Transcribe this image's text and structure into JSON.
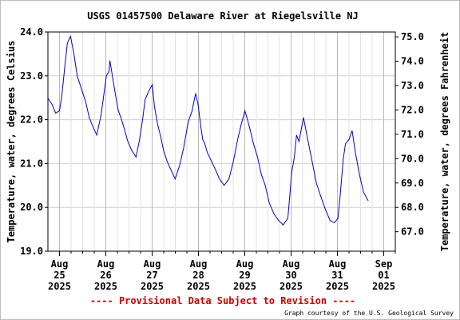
{
  "chart_data": {
    "type": "line",
    "title": "USGS 01457500 Delaware River at Riegelsville NJ",
    "ylabel_left": "Temperature, water, degrees Celsius",
    "ylabel_right": "Temperature, water, degrees Fahrenheit",
    "ylim": [
      19.0,
      24.0
    ],
    "xlim": [
      "2025-08-24 18:00",
      "2025-09-01 06:00"
    ],
    "y_ticks_left": [
      "24.0",
      "23.0",
      "22.0",
      "21.0",
      "20.0",
      "19.0"
    ],
    "y_ticks_right": [
      "75.0",
      "74.0",
      "73.0",
      "72.0",
      "71.0",
      "70.0",
      "69.0",
      "68.0",
      "67.0"
    ],
    "x_ticks": [
      {
        "month": "Aug",
        "day": "25",
        "year": "2025",
        "t": 0
      },
      {
        "month": "Aug",
        "day": "26",
        "year": "2025",
        "t": 24
      },
      {
        "month": "Aug",
        "day": "27",
        "year": "2025",
        "t": 48
      },
      {
        "month": "Aug",
        "day": "28",
        "year": "2025",
        "t": 72
      },
      {
        "month": "Aug",
        "day": "29",
        "year": "2025",
        "t": 96
      },
      {
        "month": "Aug",
        "day": "30",
        "year": "2025",
        "t": 120
      },
      {
        "month": "Aug",
        "day": "31",
        "year": "2025",
        "t": 144
      },
      {
        "month": "Sep",
        "day": "01",
        "year": "2025",
        "t": 168
      }
    ],
    "grid": true,
    "series_color": "#0000cc",
    "series": [
      {
        "name": "",
        "x_hours_from_aug25": [
          -6.2,
          -3.9,
          -2.0,
          0.0,
          1.2,
          2.6,
          4.1,
          5.7,
          7.3,
          9.2,
          11.4,
          13.6,
          15.4,
          17.2,
          19.3,
          21.5,
          23.2,
          24.3,
          25.6,
          26.1,
          27.4,
          28.9,
          30.5,
          31.8,
          33.2,
          35.4,
          37.4,
          39.7,
          41.5,
          43.2,
          44.3,
          46.2,
          48.1,
          49.2,
          50.8,
          52.5,
          53.9,
          55.8,
          57.8,
          59.9,
          62.2,
          64.3,
          66.7,
          68.7,
          70.5,
          71.8,
          73.2,
          74.2,
          75.3,
          76.6,
          78.8,
          80.9,
          82.9,
          85.3,
          87.8,
          90.1,
          92.3,
          94.2,
          96.1,
          97.4,
          98.9,
          100.5,
          102.6,
          104.6,
          106.6,
          108.7,
          111.1,
          113.5,
          115.9,
          118.3,
          119.6,
          120.3,
          121.7,
          122.8,
          124.1,
          126.4,
          128.6,
          130.9,
          133.1,
          135.4,
          137.8,
          140.2,
          142.4,
          144.3,
          145.5,
          147.0,
          148.2,
          150.0,
          151.6,
          153.3,
          155.4,
          157.5,
          159.3,
          160.0
        ],
        "values": [
          22.5,
          22.35,
          22.15,
          22.2,
          22.55,
          23.15,
          23.75,
          23.9,
          23.55,
          23.0,
          22.7,
          22.4,
          22.05,
          21.85,
          21.65,
          22.1,
          22.65,
          23.0,
          23.1,
          23.35,
          23.0,
          22.6,
          22.2,
          22.05,
          21.85,
          21.5,
          21.3,
          21.15,
          21.55,
          22.05,
          22.45,
          22.65,
          22.8,
          22.3,
          21.9,
          21.6,
          21.3,
          21.05,
          20.85,
          20.65,
          20.95,
          21.35,
          21.95,
          22.2,
          22.6,
          22.35,
          21.85,
          21.55,
          21.45,
          21.25,
          21.05,
          20.85,
          20.65,
          20.5,
          20.65,
          21.05,
          21.55,
          21.9,
          22.2,
          22.0,
          21.75,
          21.45,
          21.15,
          20.75,
          20.5,
          20.1,
          19.85,
          19.7,
          19.6,
          19.75,
          20.4,
          20.8,
          21.15,
          21.65,
          21.5,
          22.05,
          21.55,
          21.05,
          20.55,
          20.25,
          19.95,
          19.7,
          19.65,
          19.75,
          20.3,
          21.1,
          21.45,
          21.55,
          21.75,
          21.25,
          20.75,
          20.35,
          20.2,
          20.15
        ]
      }
    ],
    "footer_left": "---- Provisional Data Subject to Revision ----",
    "footer_right": "Graph courtesy of the U.S. Geological Survey",
    "footer_left_color": "#cc0000"
  }
}
